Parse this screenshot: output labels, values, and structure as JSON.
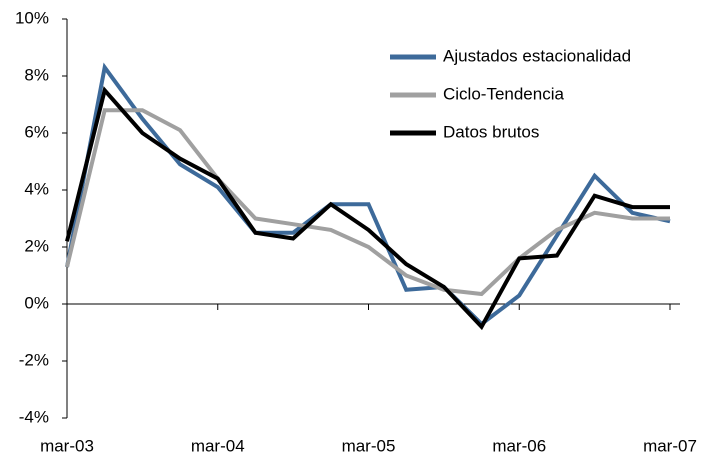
{
  "chart_data": {
    "type": "line",
    "categories": [
      "mar-03",
      null,
      null,
      null,
      "mar-04",
      null,
      null,
      null,
      "mar-05",
      null,
      null,
      null,
      "mar-06",
      null,
      null,
      null,
      "mar-07"
    ],
    "series": [
      {
        "name": "Ajustados estacionalidad",
        "color": "#3d6a9a",
        "values": [
          1.3,
          8.3,
          6.5,
          4.9,
          4.1,
          2.5,
          2.5,
          3.5,
          3.5,
          0.5,
          0.6,
          -0.7,
          0.3,
          2.4,
          4.5,
          3.2,
          2.9
        ]
      },
      {
        "name": "Ciclo-Tendencia",
        "color": "#a0a0a0",
        "values": [
          1.3,
          6.8,
          6.8,
          6.1,
          4.4,
          3.0,
          2.8,
          2.6,
          2.0,
          1.0,
          0.5,
          0.35,
          1.6,
          2.6,
          3.2,
          3.0,
          3.0
        ]
      },
      {
        "name": "Datos brutos",
        "color": "#000000",
        "values": [
          2.2,
          7.5,
          6.0,
          5.1,
          4.4,
          2.5,
          2.3,
          3.5,
          2.6,
          1.4,
          0.6,
          -0.8,
          1.6,
          1.7,
          3.8,
          3.4,
          3.4
        ]
      }
    ],
    "ylim": [
      -4,
      10
    ],
    "yticks": [
      {
        "value": -4,
        "label": "-4%"
      },
      {
        "value": -2,
        "label": "-2%"
      },
      {
        "value": 0,
        "label": "0%"
      },
      {
        "value": 2,
        "label": "2%"
      },
      {
        "value": 4,
        "label": "4%"
      },
      {
        "value": 6,
        "label": "6%"
      },
      {
        "value": 8,
        "label": "8%"
      },
      {
        "value": 10,
        "label": "10%"
      }
    ],
    "legend": "upper right"
  }
}
